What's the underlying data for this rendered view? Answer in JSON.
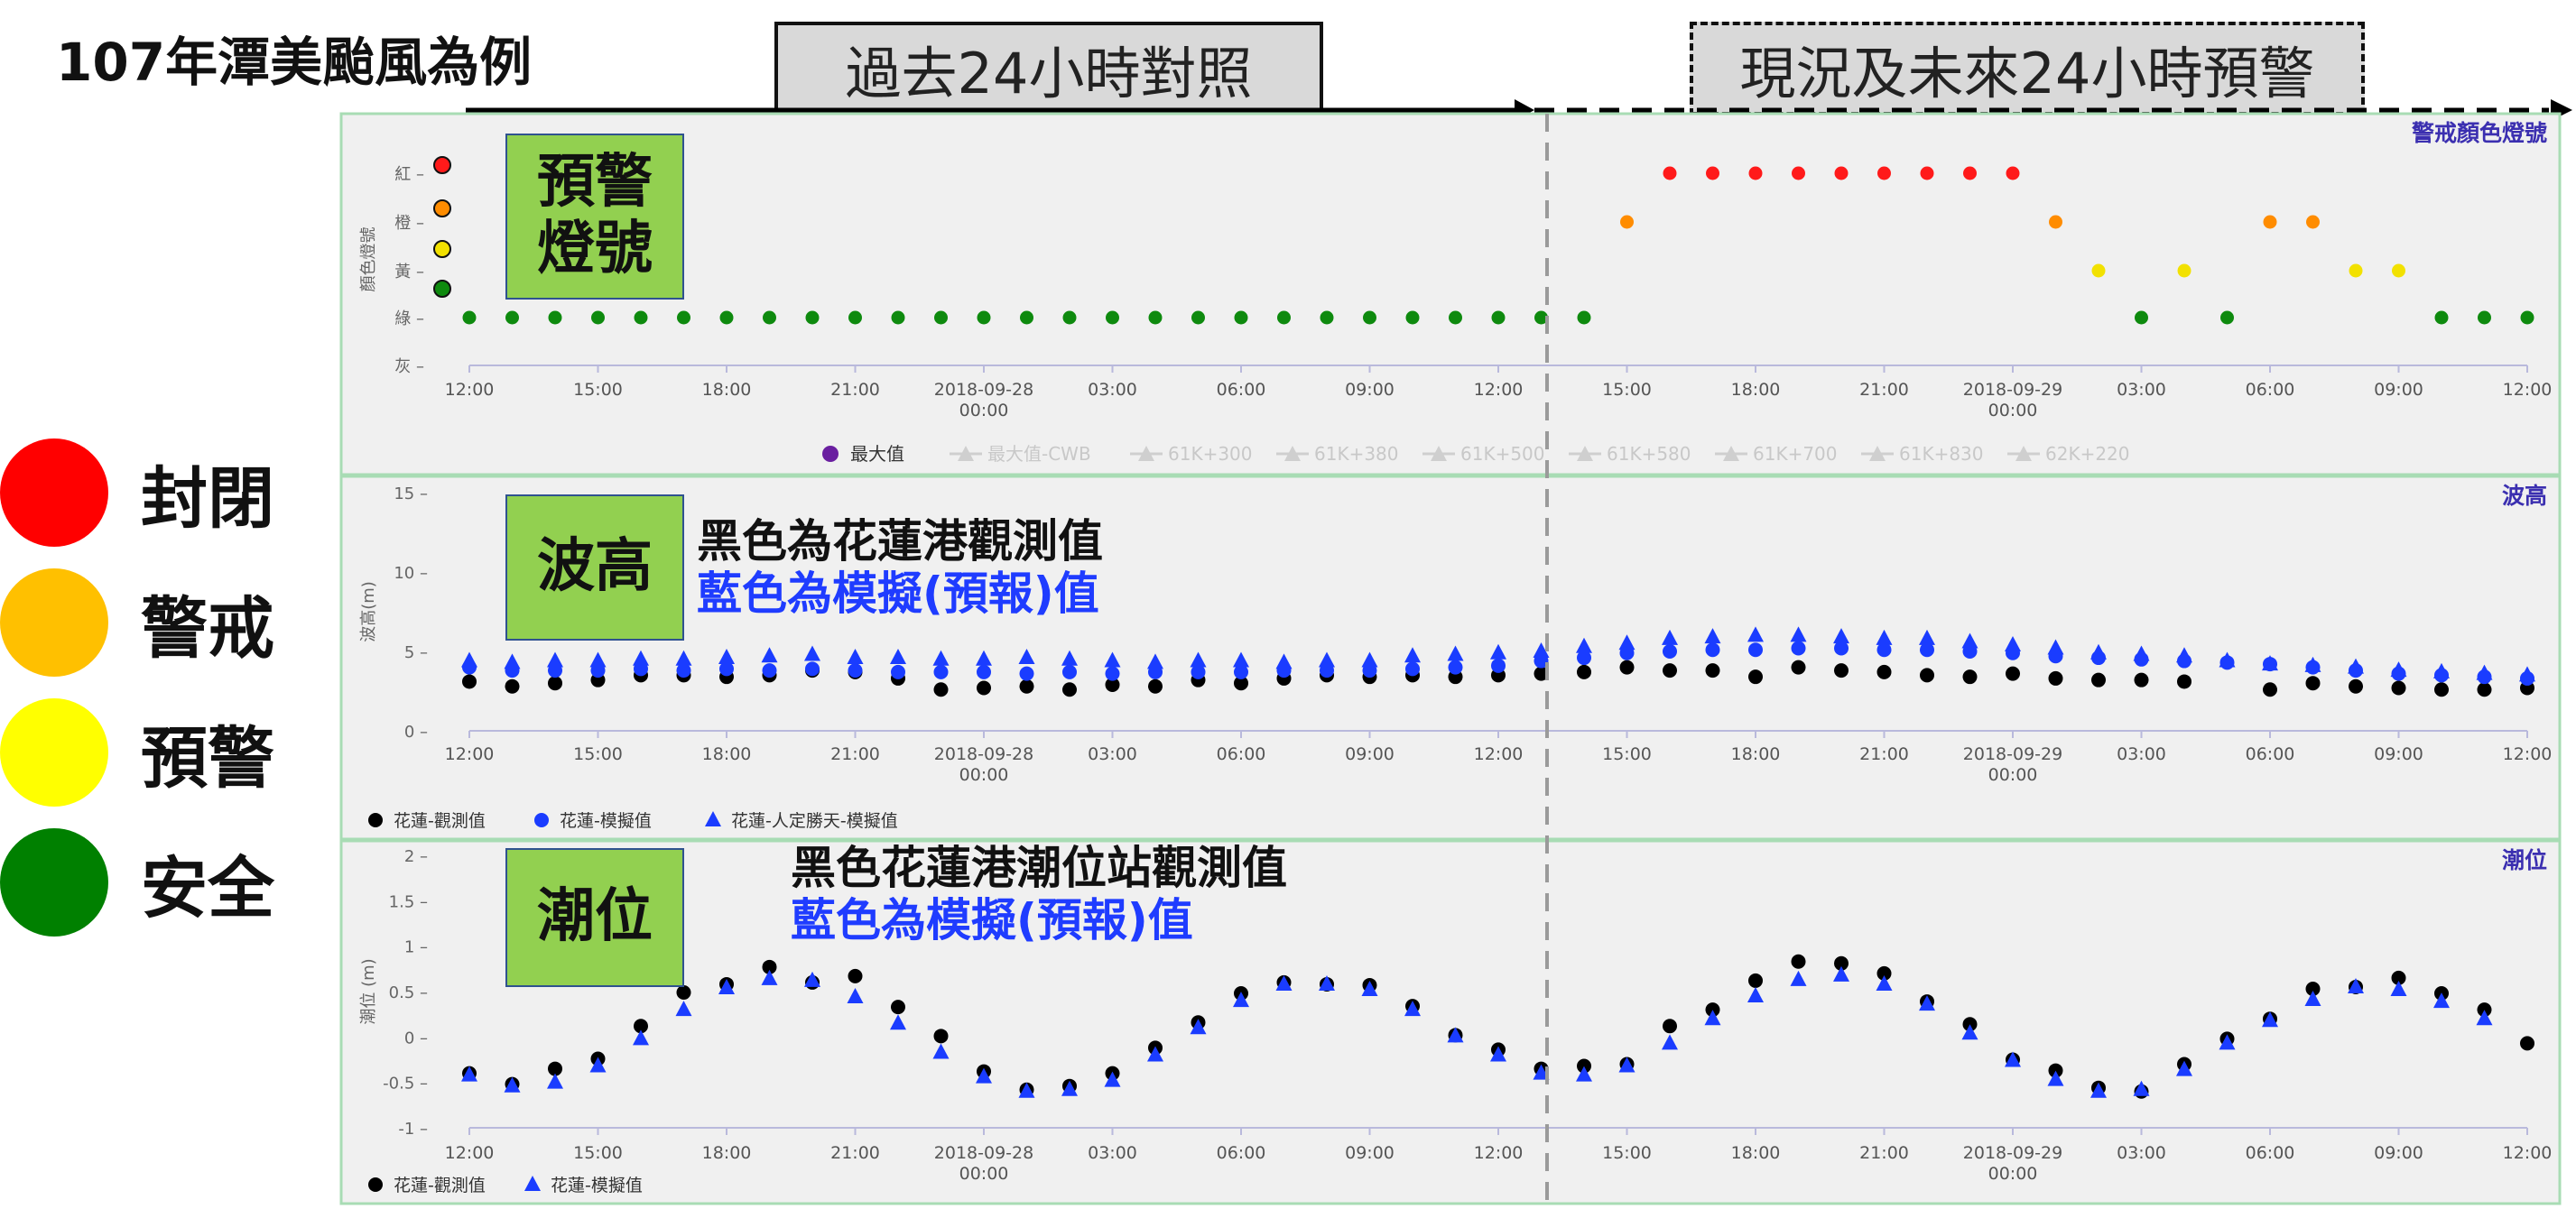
{
  "title": "107年潭美颱風為例",
  "header": {
    "past_label": "過去24小時對照",
    "future_label": "現況及未來24小時預警"
  },
  "legend": [
    {
      "label": "封閉",
      "color": "#ff0000"
    },
    {
      "label": "警戒",
      "color": "#ffc000"
    },
    {
      "label": "預警",
      "color": "#ffff00"
    },
    {
      "label": "安全",
      "color": "#008000"
    }
  ],
  "boxes": {
    "signal": "預警\n燈號",
    "wave": "波高",
    "tide": "潮位"
  },
  "notes": {
    "wave_black": "黑色為花蓮港觀測值",
    "wave_blue": "藍色為模擬(預報)值",
    "tide_black": "黑色花蓮港潮位站觀測值",
    "tide_blue": "藍色為模擬(預報)值"
  },
  "colors": {
    "observed": "#000000",
    "model": "#1a3cff",
    "panel_bg": "#f0f0f0",
    "panel_border": "#a8dcb4",
    "title_color": "#3b2fb0"
  },
  "chart_data": [
    {
      "type": "scatter",
      "title": "警戒顏色燈號",
      "ylabel": "顏色燈號",
      "y_categories": [
        "灰",
        "綠",
        "黃",
        "橙",
        "紅"
      ],
      "x_tick_labels": [
        "12:00",
        "15:00",
        "18:00",
        "21:00",
        "2018-09-28\n00:00",
        "03:00",
        "06:00",
        "09:00",
        "12:00",
        "15:00",
        "18:00",
        "21:00",
        "2018-09-29\n00:00",
        "03:00",
        "06:00",
        "09:00",
        "12:00"
      ],
      "x_range_hours": [
        0,
        48
      ],
      "now_hour": 25,
      "legend": [
        "最大值",
        "最大值-CWB",
        "61K+300",
        "61K+380",
        "61K+500",
        "61K+580",
        "61K+700",
        "61K+830",
        "62K+220"
      ],
      "points": [
        {
          "x": 0,
          "level": "綠"
        },
        {
          "x": 1,
          "level": "綠"
        },
        {
          "x": 2,
          "level": "綠"
        },
        {
          "x": 3,
          "level": "綠"
        },
        {
          "x": 4,
          "level": "綠"
        },
        {
          "x": 5,
          "level": "綠"
        },
        {
          "x": 6,
          "level": "綠"
        },
        {
          "x": 7,
          "level": "綠"
        },
        {
          "x": 8,
          "level": "綠"
        },
        {
          "x": 9,
          "level": "綠"
        },
        {
          "x": 10,
          "level": "綠"
        },
        {
          "x": 11,
          "level": "綠"
        },
        {
          "x": 12,
          "level": "綠"
        },
        {
          "x": 13,
          "level": "綠"
        },
        {
          "x": 14,
          "level": "綠"
        },
        {
          "x": 15,
          "level": "綠"
        },
        {
          "x": 16,
          "level": "綠"
        },
        {
          "x": 17,
          "level": "綠"
        },
        {
          "x": 18,
          "level": "綠"
        },
        {
          "x": 19,
          "level": "綠"
        },
        {
          "x": 20,
          "level": "綠"
        },
        {
          "x": 21,
          "level": "綠"
        },
        {
          "x": 22,
          "level": "綠"
        },
        {
          "x": 23,
          "level": "綠"
        },
        {
          "x": 24,
          "level": "綠"
        },
        {
          "x": 25,
          "level": "綠"
        },
        {
          "x": 26,
          "level": "綠"
        },
        {
          "x": 27,
          "level": "橙"
        },
        {
          "x": 28,
          "level": "紅"
        },
        {
          "x": 29,
          "level": "紅"
        },
        {
          "x": 30,
          "level": "紅"
        },
        {
          "x": 31,
          "level": "紅"
        },
        {
          "x": 32,
          "level": "紅"
        },
        {
          "x": 33,
          "level": "紅"
        },
        {
          "x": 34,
          "level": "紅"
        },
        {
          "x": 35,
          "level": "紅"
        },
        {
          "x": 36,
          "level": "紅"
        },
        {
          "x": 37,
          "level": "橙"
        },
        {
          "x": 38,
          "level": "黃"
        },
        {
          "x": 39,
          "level": "綠"
        },
        {
          "x": 40,
          "level": "黃"
        },
        {
          "x": 41,
          "level": "綠"
        },
        {
          "x": 42,
          "level": "橙"
        },
        {
          "x": 43,
          "level": "橙"
        },
        {
          "x": 44,
          "level": "黃"
        },
        {
          "x": 45,
          "level": "黃"
        },
        {
          "x": 46,
          "level": "綠"
        },
        {
          "x": 47,
          "level": "綠"
        },
        {
          "x": 48,
          "level": "綠"
        }
      ]
    },
    {
      "type": "scatter",
      "title": "波高",
      "ylabel": "波高(m)",
      "ylim": [
        0,
        15
      ],
      "y_ticks": [
        0,
        5,
        10,
        15
      ],
      "x_tick_labels": [
        "12:00",
        "15:00",
        "18:00",
        "21:00",
        "2018-09-28\n00:00",
        "03:00",
        "06:00",
        "09:00",
        "12:00",
        "15:00",
        "18:00",
        "21:00",
        "2018-09-29\n00:00",
        "03:00",
        "06:00",
        "09:00",
        "12:00"
      ],
      "x_range_hours": [
        0,
        48
      ],
      "series": [
        {
          "name": "花蓮-觀測值",
          "marker": "circle",
          "color": "#000000",
          "x": [
            0,
            1,
            2,
            3,
            4,
            5,
            6,
            7,
            8,
            9,
            10,
            11,
            12,
            13,
            14,
            15,
            16,
            17,
            18,
            19,
            20,
            21,
            22,
            23,
            24,
            25,
            26,
            27,
            28,
            29,
            30,
            31,
            32,
            33,
            34,
            35,
            36,
            37,
            38,
            39,
            40,
            41,
            42,
            43,
            44,
            45,
            46,
            47,
            48
          ],
          "values": [
            3.1,
            2.8,
            3.0,
            3.2,
            3.5,
            3.5,
            3.4,
            3.5,
            3.8,
            3.7,
            3.3,
            2.6,
            2.7,
            2.8,
            2.6,
            2.9,
            2.8,
            3.2,
            3.0,
            3.3,
            3.5,
            3.4,
            3.5,
            3.4,
            3.5,
            3.6,
            3.7,
            4.0,
            3.8,
            3.8,
            3.4,
            4.0,
            3.8,
            3.7,
            3.5,
            3.4,
            3.6,
            3.3,
            3.2,
            3.2,
            3.1,
            null,
            2.6,
            3.0,
            2.8,
            2.7,
            2.6,
            2.6,
            2.7
          ]
        },
        {
          "name": "花蓮-模擬值",
          "marker": "circle",
          "color": "#1a3cff",
          "x": [
            0,
            1,
            2,
            3,
            4,
            5,
            6,
            7,
            8,
            9,
            10,
            11,
            12,
            13,
            14,
            15,
            16,
            17,
            18,
            19,
            20,
            21,
            22,
            23,
            24,
            25,
            26,
            27,
            28,
            29,
            30,
            31,
            32,
            33,
            34,
            35,
            36,
            37,
            38,
            39,
            40,
            41,
            42,
            43,
            44,
            45,
            46,
            47,
            48
          ],
          "values": [
            4.0,
            3.8,
            3.8,
            3.8,
            3.9,
            3.8,
            3.9,
            3.8,
            3.9,
            3.8,
            3.7,
            3.7,
            3.7,
            3.6,
            3.7,
            3.6,
            3.7,
            3.7,
            3.7,
            3.8,
            3.8,
            3.8,
            3.9,
            4.0,
            4.1,
            4.4,
            4.6,
            4.9,
            5.0,
            5.1,
            5.1,
            5.2,
            5.2,
            5.1,
            5.1,
            5.0,
            4.9,
            4.7,
            4.6,
            4.5,
            4.4,
            4.3,
            4.2,
            4.0,
            3.8,
            3.6,
            3.5,
            3.4,
            3.3
          ]
        },
        {
          "name": "花蓮-人定勝天-模擬值",
          "marker": "triangle",
          "color": "#1a3cff",
          "x": [
            0,
            1,
            2,
            3,
            4,
            5,
            6,
            7,
            8,
            9,
            10,
            11,
            12,
            13,
            14,
            15,
            16,
            17,
            18,
            19,
            20,
            21,
            22,
            23,
            24,
            25,
            26,
            27,
            28,
            29,
            30,
            31,
            32,
            33,
            34,
            35,
            36,
            37,
            38,
            39,
            40,
            41,
            42,
            43,
            44,
            45,
            46,
            47,
            48
          ],
          "values": [
            4.4,
            4.3,
            4.4,
            4.4,
            4.5,
            4.5,
            4.6,
            4.7,
            4.8,
            4.6,
            4.6,
            4.5,
            4.5,
            4.6,
            4.5,
            4.4,
            4.3,
            4.4,
            4.4,
            4.3,
            4.4,
            4.4,
            4.7,
            4.8,
            4.9,
            5.0,
            5.3,
            5.5,
            5.8,
            5.9,
            6.0,
            6.0,
            5.9,
            5.8,
            5.8,
            5.6,
            5.4,
            5.2,
            4.9,
            4.8,
            4.7,
            4.4,
            4.2,
            4.1,
            4.0,
            3.8,
            3.7,
            3.6,
            3.5
          ]
        }
      ]
    },
    {
      "type": "scatter",
      "title": "潮位",
      "ylabel": "潮位 (m)",
      "ylim": [
        -1,
        2
      ],
      "y_ticks": [
        -1,
        -0.5,
        0,
        0.5,
        1,
        1.5,
        2
      ],
      "x_tick_labels": [
        "12:00",
        "15:00",
        "18:00",
        "21:00",
        "2018-09-28\n00:00",
        "03:00",
        "06:00",
        "09:00",
        "12:00",
        "15:00",
        "18:00",
        "21:00",
        "2018-09-29\n00:00",
        "03:00",
        "06:00",
        "09:00",
        "12:00"
      ],
      "x_range_hours": [
        0,
        48
      ],
      "series": [
        {
          "name": "花蓮-觀測值",
          "marker": "circle",
          "color": "#000000",
          "x": [
            0,
            1,
            2,
            3,
            4,
            5,
            6,
            7,
            8,
            9,
            10,
            11,
            12,
            13,
            14,
            15,
            16,
            17,
            18,
            19,
            20,
            21,
            22,
            23,
            24,
            25,
            26,
            27,
            28,
            29,
            30,
            31,
            32,
            33,
            34,
            35,
            36,
            37,
            38,
            39,
            40,
            41,
            42,
            43,
            44,
            45,
            46,
            47,
            48
          ],
          "values": [
            -0.4,
            -0.52,
            -0.35,
            -0.24,
            0.12,
            0.49,
            0.58,
            0.77,
            0.6,
            0.67,
            0.33,
            0.01,
            -0.38,
            -0.58,
            -0.54,
            -0.4,
            -0.12,
            0.16,
            0.48,
            0.6,
            0.58,
            0.57,
            0.34,
            0.02,
            -0.14,
            -0.35,
            -0.32,
            -0.3,
            0.12,
            0.3,
            0.62,
            0.83,
            0.81,
            0.7,
            0.39,
            0.14,
            -0.25,
            -0.37,
            -0.56,
            -0.6,
            -0.3,
            -0.02,
            0.2,
            0.53,
            0.55,
            0.65,
            0.48,
            0.3,
            -0.07
          ]
        },
        {
          "name": "花蓮-模擬值",
          "marker": "triangle",
          "color": "#1a3cff",
          "x": [
            0,
            1,
            2,
            3,
            4,
            5,
            6,
            7,
            8,
            9,
            10,
            11,
            12,
            13,
            14,
            15,
            16,
            17,
            18,
            19,
            20,
            21,
            22,
            23,
            24,
            25,
            26,
            27,
            28,
            29,
            30,
            31,
            32,
            33,
            34,
            35,
            36,
            37,
            38,
            39,
            40,
            41,
            42,
            43,
            44,
            45,
            46,
            47
          ],
          "values": [
            -0.42,
            -0.54,
            -0.5,
            -0.32,
            -0.02,
            0.3,
            0.54,
            0.64,
            0.62,
            0.44,
            0.15,
            -0.17,
            -0.44,
            -0.6,
            -0.58,
            -0.48,
            -0.2,
            0.1,
            0.4,
            0.58,
            0.58,
            0.52,
            0.3,
            0.01,
            -0.2,
            -0.4,
            -0.42,
            -0.32,
            -0.07,
            0.2,
            0.45,
            0.63,
            0.68,
            0.58,
            0.36,
            0.04,
            -0.26,
            -0.47,
            -0.6,
            -0.58,
            -0.36,
            -0.07,
            0.18,
            0.41,
            0.55,
            0.52,
            0.39,
            0.2
          ]
        }
      ]
    }
  ]
}
